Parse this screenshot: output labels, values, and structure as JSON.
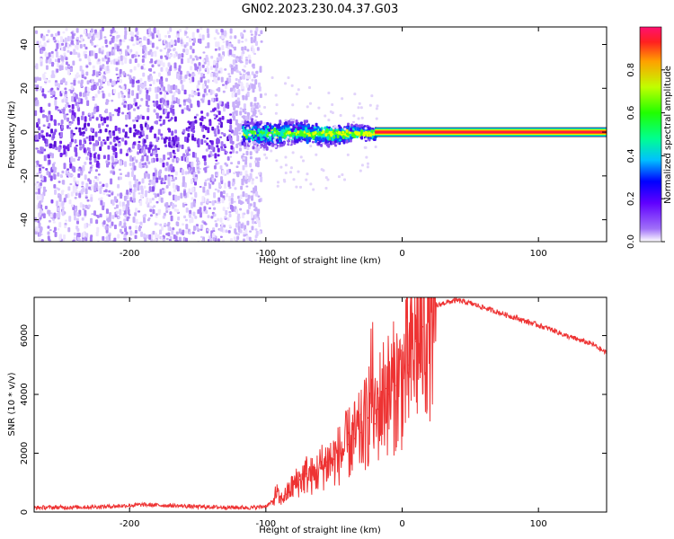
{
  "title": "GN02.2023.230.04.37.G03",
  "chart_data": [
    {
      "type": "heatmap",
      "xlabel": "Height of straight line (km)",
      "ylabel": "Frequency (Hz)",
      "xlim": [
        -270,
        150
      ],
      "ylim": [
        -50,
        48
      ],
      "xticks": [
        -200,
        -100,
        0,
        100
      ],
      "yticks": [
        -40,
        -20,
        0,
        20,
        40
      ],
      "grid": false,
      "regions": [
        {
          "x": [
            -270,
            -110
          ],
          "freq_spread": [
            -50,
            48
          ],
          "amplitude": 0.15
        },
        {
          "x": [
            -118,
            -20
          ],
          "freq_spread": [
            -8,
            8
          ],
          "amplitude": 0.45
        },
        {
          "x": [
            -20,
            150
          ],
          "freq_spread": [
            -1,
            1
          ],
          "amplitude": 0.9
        }
      ],
      "colorbar": {
        "label": "Normalized spectral amplitude",
        "ticks": [
          "0.0",
          "0.2",
          "0.4",
          "0.6",
          "0.8"
        ],
        "range": [
          0,
          1
        ]
      }
    },
    {
      "type": "line",
      "xlabel": "Height of straight line (km)",
      "ylabel": "SNR (10 * v/v)",
      "xlim": [
        -270,
        150
      ],
      "ylim": [
        0,
        7300
      ],
      "xticks": [
        -200,
        -100,
        0,
        100
      ],
      "yticks": [
        0,
        2000,
        4000,
        6000
      ],
      "grid": false,
      "color": "#ee3333",
      "series": [
        {
          "x": [
            -270,
            -250,
            -230,
            -210,
            -190,
            -170,
            -150,
            -130,
            -110,
            -100,
            -95,
            -92,
            -90,
            -85,
            -80,
            -75,
            -70,
            -65,
            -60,
            -55,
            -50,
            -45,
            -40,
            -35,
            -30,
            -25,
            -22,
            -20,
            -18,
            -15,
            -12,
            -10,
            -5,
            0,
            5,
            10,
            15,
            20,
            25,
            30,
            40,
            50,
            60,
            70,
            80,
            90,
            100,
            110,
            120,
            130,
            140,
            150
          ],
          "values": [
            150,
            160,
            170,
            200,
            250,
            220,
            180,
            160,
            150,
            200,
            350,
            700,
            400,
            600,
            900,
            1100,
            1300,
            1200,
            1500,
            1700,
            1800,
            2000,
            2300,
            2500,
            2700,
            3200,
            4500,
            3000,
            3500,
            3800,
            4200,
            4000,
            4300,
            4500,
            5000,
            5800,
            6300,
            6800,
            7000,
            7100,
            7200,
            7100,
            6950,
            6800,
            6650,
            6500,
            6350,
            6200,
            6000,
            5850,
            5700,
            5400
          ]
        }
      ]
    }
  ]
}
